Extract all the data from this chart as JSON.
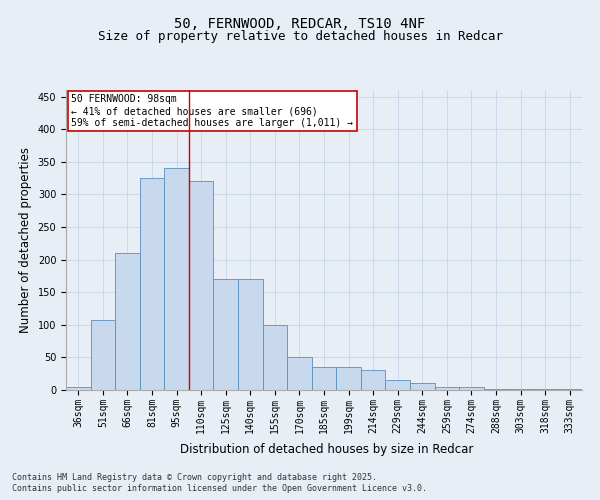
{
  "title_line1": "50, FERNWOOD, REDCAR, TS10 4NF",
  "title_line2": "Size of property relative to detached houses in Redcar",
  "xlabel": "Distribution of detached houses by size in Redcar",
  "ylabel": "Number of detached properties",
  "categories": [
    "36sqm",
    "51sqm",
    "66sqm",
    "81sqm",
    "95sqm",
    "110sqm",
    "125sqm",
    "140sqm",
    "155sqm",
    "170sqm",
    "185sqm",
    "199sqm",
    "214sqm",
    "229sqm",
    "244sqm",
    "259sqm",
    "274sqm",
    "288sqm",
    "303sqm",
    "318sqm",
    "333sqm"
  ],
  "values": [
    5,
    107,
    210,
    325,
    340,
    320,
    170,
    170,
    100,
    50,
    35,
    35,
    30,
    15,
    10,
    5,
    5,
    2,
    1,
    1,
    1
  ],
  "bar_color": "#c9d9ed",
  "bar_edge_color": "#5a8fc0",
  "bar_linewidth": 0.6,
  "annotation_text": "50 FERNWOOD: 98sqm\n← 41% of detached houses are smaller (696)\n59% of semi-detached houses are larger (1,011) →",
  "annotation_box_color": "#ffffff",
  "annotation_box_edge": "#cc0000",
  "vline_x": 4.5,
  "vline_color": "#cc0000",
  "vline_lw": 1.0,
  "ylim": [
    0,
    460
  ],
  "yticks": [
    0,
    50,
    100,
    150,
    200,
    250,
    300,
    350,
    400,
    450
  ],
  "grid_color": "#c8d4e8",
  "background_color": "#e8eef6",
  "plot_bg_color": "#e8eef6",
  "footer_line1": "Contains HM Land Registry data © Crown copyright and database right 2025.",
  "footer_line2": "Contains public sector information licensed under the Open Government Licence v3.0.",
  "title_fontsize": 10,
  "subtitle_fontsize": 9,
  "tick_fontsize": 7,
  "label_fontsize": 8.5,
  "annotation_fontsize": 7,
  "footer_fontsize": 6
}
